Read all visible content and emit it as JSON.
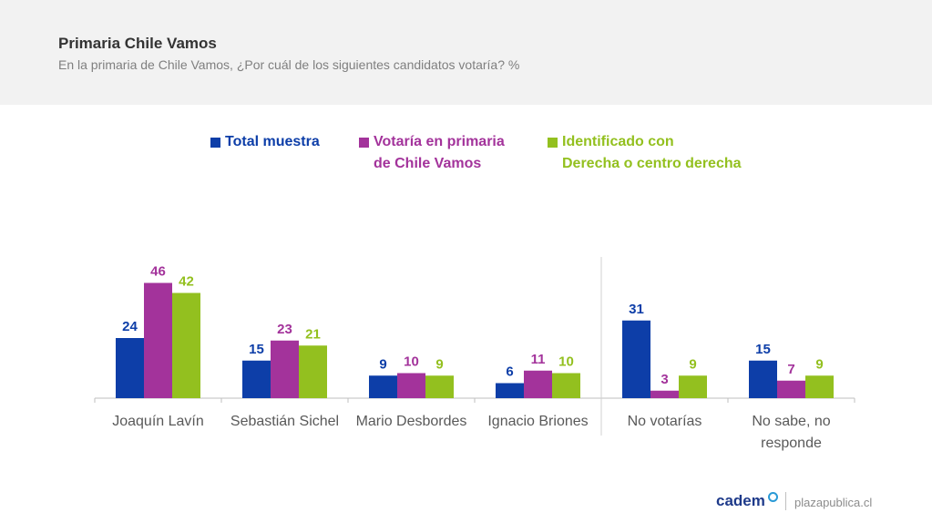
{
  "header": {
    "title": "Primaria Chile Vamos",
    "subtitle": "En la primaria de Chile Vamos, ¿Por cuál de los siguientes candidatos votaría? %"
  },
  "footer": {
    "logo": "cadem",
    "site": "plazapublica.cl"
  },
  "chart_data": {
    "type": "bar",
    "categories": [
      "Joaquín Lavín",
      "Sebastián Sichel",
      "Mario Desbordes",
      "Ignacio Briones",
      "No votarías",
      "No sabe, no\nresponde"
    ],
    "series": [
      {
        "name": "Total muestra",
        "color": "#0d3ea8",
        "values": [
          24,
          15,
          9,
          6,
          31,
          15
        ]
      },
      {
        "name": "Votaría en primaria\nde Chile Vamos",
        "color": "#a3339b",
        "values": [
          46,
          23,
          10,
          11,
          3,
          7
        ]
      },
      {
        "name": "Identificado con\nDerecha o centro derecha",
        "color": "#93c01f",
        "values": [
          42,
          21,
          9,
          10,
          9,
          9
        ]
      }
    ],
    "legend_position": "top",
    "grid": false,
    "ylim": [
      0,
      50
    ]
  }
}
